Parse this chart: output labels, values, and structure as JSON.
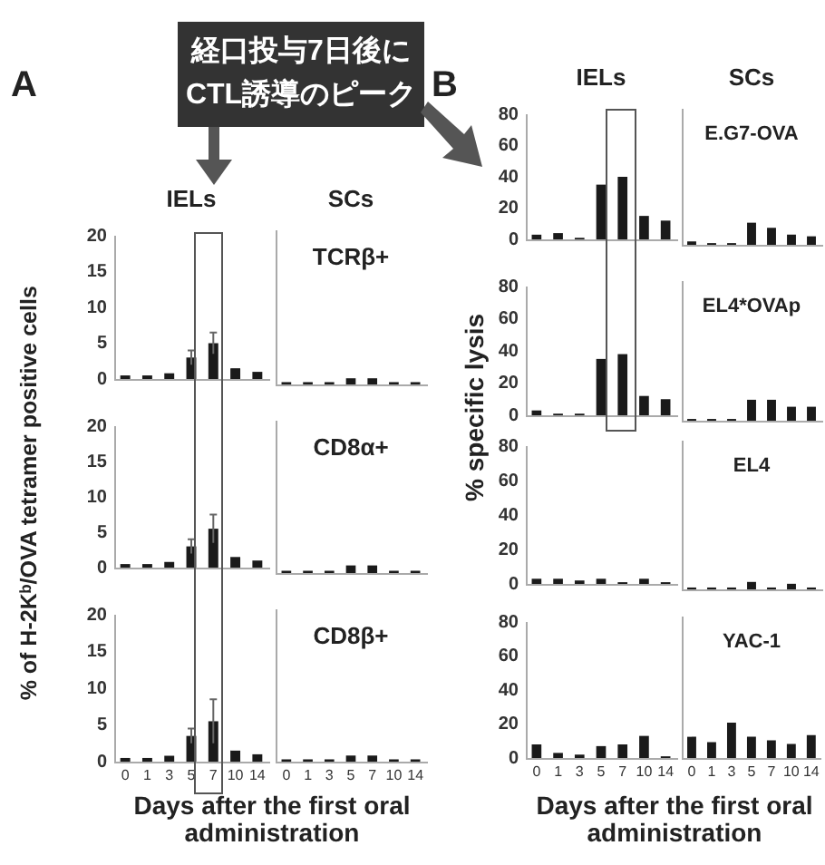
{
  "chart_data": [
    {
      "type": "bar",
      "title": "IELs",
      "annotations": [
        "A",
        "経口投与7日後に\nCTL誘導のピーク"
      ],
      "categories": [
        "0",
        "1",
        "3",
        "5",
        "7",
        "10",
        "14"
      ],
      "values": [
        0.5,
        0.5,
        0.8,
        3,
        5,
        1.5,
        1
      ],
      "errors": [
        null,
        null,
        null,
        1,
        1.5,
        null,
        null
      ],
      "color": "#1a1a1a",
      "ylim": [
        0,
        20
      ],
      "yticks": [
        0,
        5,
        10,
        15,
        20
      ],
      "tick_labels": "y",
      "grid": false
    },
    {
      "type": "bar",
      "title": "SCs",
      "annotations": [
        "TCRβ+"
      ],
      "categories": [
        "0",
        "1",
        "3",
        "5",
        "7",
        "10",
        "14"
      ],
      "values": [
        0.3,
        0.3,
        0.3,
        0.8,
        0.8,
        0.3,
        0.3
      ],
      "color": "#1a1a1a",
      "ylim": [
        0,
        20
      ],
      "yticks": [
        0,
        5,
        10,
        15,
        20
      ],
      "tick_labels": false,
      "grid": false
    },
    {
      "type": "bar",
      "ylabel": "% of H-2Kᵇ/OVA tetramer positive cells",
      "categories": [
        "0",
        "1",
        "3",
        "5",
        "7",
        "10",
        "14"
      ],
      "values": [
        0.5,
        0.5,
        0.8,
        3,
        5.5,
        1.5,
        1
      ],
      "errors": [
        null,
        null,
        null,
        1,
        2,
        null,
        null
      ],
      "color": "#1a1a1a",
      "ylim": [
        0,
        20
      ],
      "yticks": [
        0,
        5,
        10,
        15,
        20
      ],
      "tick_labels": "y",
      "grid": false
    },
    {
      "type": "bar",
      "annotations": [
        "CD8α+"
      ],
      "categories": [
        "0",
        "1",
        "3",
        "5",
        "7",
        "10",
        "14"
      ],
      "values": [
        0.3,
        0.3,
        0.3,
        1,
        1,
        0.3,
        0.3
      ],
      "color": "#1a1a1a",
      "ylim": [
        0,
        20
      ],
      "yticks": [
        0,
        5,
        10,
        15,
        20
      ],
      "tick_labels": false,
      "grid": false
    },
    {
      "type": "bar",
      "xlabel": "Days after the first oral administration",
      "categories": [
        "0",
        "1",
        "3",
        "5",
        "7",
        "10",
        "14"
      ],
      "values": [
        0.5,
        0.5,
        0.8,
        3.5,
        5.5,
        1.5,
        1
      ],
      "errors": [
        null,
        null,
        null,
        1,
        3,
        null,
        null
      ],
      "color": "#1a1a1a",
      "ylim": [
        0,
        20
      ],
      "yticks": [
        0,
        5,
        10,
        15,
        20
      ],
      "grid": false
    },
    {
      "type": "bar",
      "annotations": [
        "CD8β+"
      ],
      "categories": [
        "0",
        "1",
        "3",
        "5",
        "7",
        "10",
        "14"
      ],
      "values": [
        0.3,
        0.3,
        0.3,
        0.8,
        0.8,
        0.3,
        0.3
      ],
      "color": "#1a1a1a",
      "ylim": [
        0,
        20
      ],
      "yticks": [
        0,
        5,
        10,
        15,
        20
      ],
      "tick_labels": "x",
      "grid": false
    },
    {
      "type": "bar",
      "title": "IELs",
      "annotations": [
        "B"
      ],
      "categories": [
        "0",
        "1",
        "3",
        "5",
        "7",
        "10",
        "14"
      ],
      "values": [
        3,
        4,
        1,
        35,
        40,
        15,
        12
      ],
      "color": "#1a1a1a",
      "ylim": [
        0,
        80
      ],
      "yticks": [
        0,
        20,
        40,
        60,
        80
      ],
      "tick_labels": "y",
      "grid": false
    },
    {
      "type": "bar",
      "title": "SCs",
      "annotations": [
        "E.G7-OVA"
      ],
      "categories": [
        "0",
        "1",
        "3",
        "5",
        "7",
        "10",
        "14"
      ],
      "values": [
        2,
        1,
        1,
        13,
        10,
        6,
        5
      ],
      "color": "#1a1a1a",
      "ylim": [
        0,
        80
      ],
      "yticks": [
        0,
        20,
        40,
        60,
        80
      ],
      "tick_labels": false,
      "grid": false
    },
    {
      "type": "bar",
      "ylabel": "% specific lysis",
      "categories": [
        "0",
        "1",
        "3",
        "5",
        "7",
        "10",
        "14"
      ],
      "values": [
        3,
        1,
        1,
        35,
        38,
        12,
        10
      ],
      "color": "#1a1a1a",
      "ylim": [
        0,
        80
      ],
      "yticks": [
        0,
        20,
        40,
        60,
        80
      ],
      "tick_labels": "y",
      "grid": false
    },
    {
      "type": "bar",
      "annotations": [
        "EL4*OVAp"
      ],
      "categories": [
        "0",
        "1",
        "3",
        "5",
        "7",
        "10",
        "14"
      ],
      "values": [
        1,
        1,
        1,
        12,
        12,
        8,
        8
      ],
      "color": "#1a1a1a",
      "ylim": [
        0,
        80
      ],
      "yticks": [
        0,
        20,
        40,
        60,
        80
      ],
      "tick_labels": false,
      "grid": false
    },
    {
      "type": "bar",
      "categories": [
        "0",
        "1",
        "3",
        "5",
        "7",
        "10",
        "14"
      ],
      "values": [
        3,
        3,
        2,
        3,
        1,
        3,
        1
      ],
      "color": "#1a1a1a",
      "ylim": [
        0,
        80
      ],
      "yticks": [
        0,
        20,
        40,
        60,
        80
      ],
      "tick_labels": "y",
      "grid": false
    },
    {
      "type": "bar",
      "annotations": [
        "EL4"
      ],
      "categories": [
        "0",
        "1",
        "3",
        "5",
        "7",
        "10",
        "14"
      ],
      "values": [
        1,
        1,
        1,
        4,
        1,
        3,
        1
      ],
      "color": "#1a1a1a",
      "ylim": [
        0,
        80
      ],
      "yticks": [
        0,
        20,
        40,
        60,
        80
      ],
      "tick_labels": false,
      "grid": false
    },
    {
      "type": "bar",
      "xlabel": "Days after the first oral administration",
      "categories": [
        "0",
        "1",
        "3",
        "5",
        "7",
        "10",
        "14"
      ],
      "values": [
        8,
        3,
        2,
        7,
        8,
        13,
        1
      ],
      "color": "#1a1a1a",
      "ylim": [
        0,
        80
      ],
      "yticks": [
        0,
        20,
        40,
        60,
        80
      ],
      "grid": false
    },
    {
      "type": "bar",
      "annotations": [
        "YAC-1"
      ],
      "categories": [
        "0",
        "1",
        "3",
        "5",
        "7",
        "10",
        "14"
      ],
      "values": [
        12,
        9,
        20,
        12,
        10,
        8,
        13
      ],
      "color": "#1a1a1a",
      "ylim": [
        0,
        80
      ],
      "yticks": [
        0,
        20,
        40,
        60,
        80
      ],
      "tick_labels": "x",
      "grid": false
    }
  ]
}
